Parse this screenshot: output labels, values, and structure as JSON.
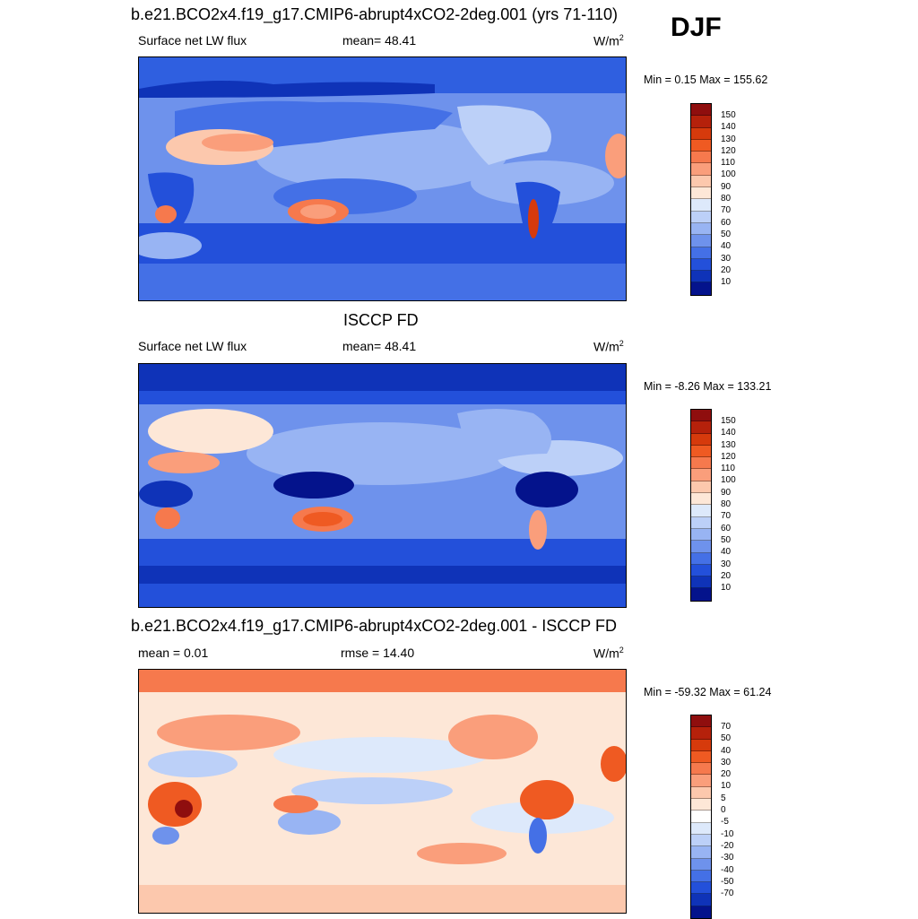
{
  "corner_label": "DJF",
  "panels": [
    {
      "title": "b.e21.BCO2x4.f19_g17.CMIP6-abrupt4xCO2-2deg.001 (yrs 71-110)",
      "left_label": "Surface net LW flux",
      "center_label": "mean=  48.41",
      "units": "W/m",
      "units_sup": "2",
      "minmax": "Min =   0.15 Max = 155.62",
      "colorbar_ticks": [
        "150",
        "140",
        "130",
        "120",
        "110",
        "100",
        "90",
        "80",
        "70",
        "60",
        "50",
        "40",
        "30",
        "20",
        "10"
      ],
      "colorbar_colors": [
        "#8f0e0e",
        "#b5210b",
        "#d63a0c",
        "#ef5a22",
        "#f6794d",
        "#fa9e7b",
        "#fcc8ad",
        "#fde7d7",
        "#dde9fb",
        "#bcd0f8",
        "#98b4f3",
        "#6e92ec",
        "#4470e6",
        "#2350da",
        "#0f33b8",
        "#04138c"
      ]
    },
    {
      "title": "ISCCP FD",
      "left_label": "Surface net LW flux",
      "center_label": "mean=  48.41",
      "units": "W/m",
      "units_sup": "2",
      "minmax": "Min =  -8.26 Max = 133.21",
      "colorbar_ticks": [
        "150",
        "140",
        "130",
        "120",
        "110",
        "100",
        "90",
        "80",
        "70",
        "60",
        "50",
        "40",
        "30",
        "20",
        "10"
      ],
      "colorbar_colors": [
        "#8f0e0e",
        "#b5210b",
        "#d63a0c",
        "#ef5a22",
        "#f6794d",
        "#fa9e7b",
        "#fcc8ad",
        "#fde7d7",
        "#dde9fb",
        "#bcd0f8",
        "#98b4f3",
        "#6e92ec",
        "#4470e6",
        "#2350da",
        "#0f33b8",
        "#04138c"
      ]
    },
    {
      "title": "b.e21.BCO2x4.f19_g17.CMIP6-abrupt4xCO2-2deg.001 - ISCCP FD",
      "left_label": "mean =   0.01",
      "center_label": "rmse =  14.40",
      "units": "W/m",
      "units_sup": "2",
      "minmax": "Min = -59.32 Max =  61.24",
      "colorbar_ticks": [
        "70",
        "50",
        "40",
        "30",
        "20",
        "10",
        "5",
        "0",
        "-5",
        "-10",
        "-20",
        "-30",
        "-40",
        "-50",
        "-70"
      ],
      "colorbar_colors": [
        "#8f0e0e",
        "#b5210b",
        "#d63a0c",
        "#ef5a22",
        "#f6794d",
        "#fa9e7b",
        "#fcc8ad",
        "#fde7d7",
        "#ffffff",
        "#dde9fb",
        "#bcd0f8",
        "#98b4f3",
        "#6e92ec",
        "#4470e6",
        "#2350da",
        "#0f33b8",
        "#04138c"
      ]
    }
  ]
}
